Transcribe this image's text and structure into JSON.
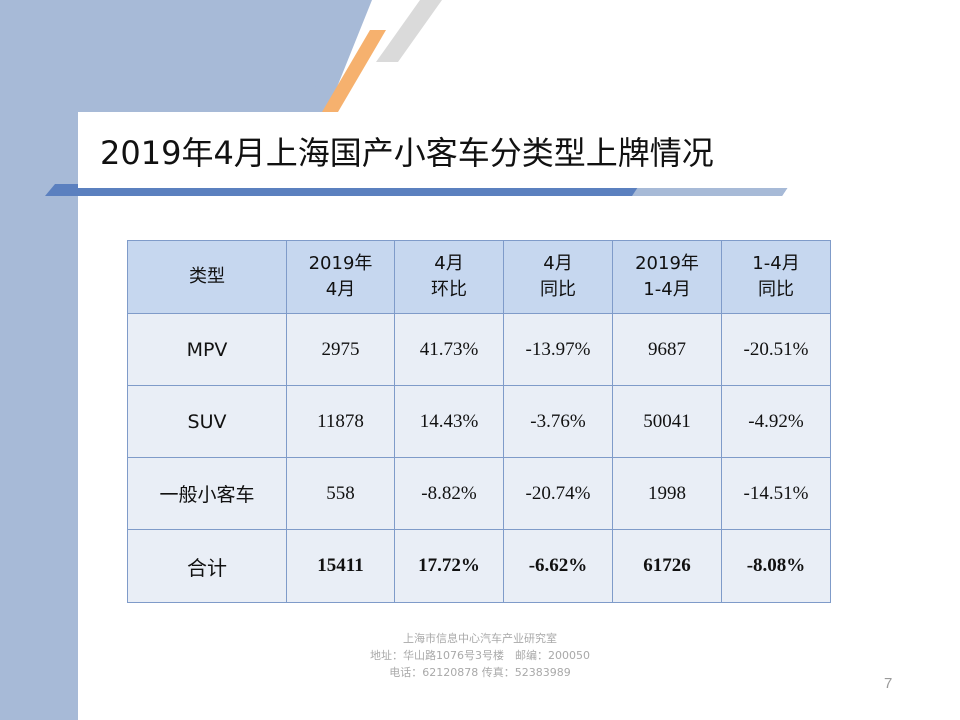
{
  "title": "2019年4月上海国产小客车分类型上牌情况",
  "table": {
    "headers": [
      [
        "类型"
      ],
      [
        "2019年",
        "4月"
      ],
      [
        "4月",
        "环比"
      ],
      [
        "4月",
        "同比"
      ],
      [
        "2019年",
        "1-4月"
      ],
      [
        "1-4月",
        "同比"
      ]
    ],
    "rows": [
      {
        "type": "MPV",
        "april": "2975",
        "mom": "41.73%",
        "yoy": "-13.97%",
        "ytd": "9687",
        "ytd_yoy": "-20.51%"
      },
      {
        "type": "SUV",
        "april": "11878",
        "mom": "14.43%",
        "yoy": "-3.76%",
        "ytd": "50041",
        "ytd_yoy": "-4.92%"
      },
      {
        "type": "一般小客车",
        "april": "558",
        "mom": "-8.82%",
        "yoy": "-20.74%",
        "ytd": "1998",
        "ytd_yoy": "-14.51%"
      }
    ],
    "total": {
      "type": "合计",
      "april": "15411",
      "mom": "17.72%",
      "yoy": "-6.62%",
      "ytd": "61726",
      "ytd_yoy": "-8.08%"
    }
  },
  "footer": {
    "line1": "上海市信息中心汽车产业研究室",
    "line2": "地址：华山路1076号3号楼　邮编：200050",
    "line3": "电话：62120878 传真：52383989"
  },
  "page_number": "7",
  "colors": {
    "band": "#a7bad7",
    "accent_orange": "#f6b16e",
    "accent_gray": "#d9d9d9",
    "header_bg": "#c6d7ef",
    "cell_bg": "#e9eef6",
    "border": "#7f9bc9"
  }
}
